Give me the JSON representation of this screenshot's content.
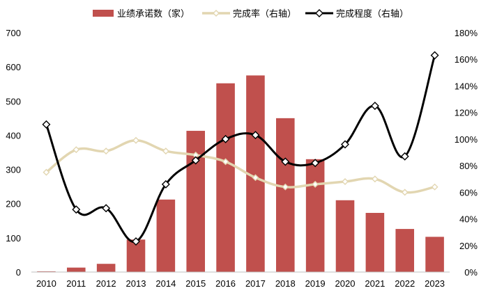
{
  "chart_data": {
    "type": "bar",
    "categories": [
      "2010",
      "2011",
      "2012",
      "2013",
      "2014",
      "2015",
      "2016",
      "2017",
      "2018",
      "2019",
      "2020",
      "2021",
      "2022",
      "2023"
    ],
    "series": [
      {
        "name": "业绩承诺数（家）",
        "type": "bar",
        "axis": "left",
        "values": [
          2,
          13,
          24,
          95,
          212,
          413,
          552,
          575,
          450,
          330,
          210,
          173,
          126,
          103
        ]
      },
      {
        "name": "完成率（右轴）",
        "type": "line",
        "axis": "right",
        "values": [
          0.75,
          0.92,
          0.91,
          0.99,
          0.91,
          0.88,
          0.83,
          0.71,
          0.64,
          0.66,
          0.68,
          0.7,
          0.6,
          0.64
        ]
      },
      {
        "name": "完成程度（右轴）",
        "type": "line",
        "axis": "right",
        "values": [
          1.11,
          0.47,
          0.48,
          0.23,
          0.66,
          0.84,
          1.0,
          1.03,
          0.83,
          0.82,
          0.96,
          1.25,
          0.87,
          1.63
        ]
      }
    ],
    "y_left": {
      "min": 0,
      "max": 700,
      "ticks": [
        "0",
        "100",
        "200",
        "300",
        "400",
        "500",
        "600",
        "700"
      ]
    },
    "y_right": {
      "min": 0,
      "max": 1.8,
      "ticks": [
        "0%",
        "20%",
        "40%",
        "60%",
        "80%",
        "100%",
        "120%",
        "140%",
        "160%",
        "180%"
      ]
    },
    "legend_position": "top",
    "grid": false,
    "colors": {
      "bar": "#C0504D",
      "rate_line": "#E2D6B1",
      "degree_line": "#000000"
    }
  }
}
